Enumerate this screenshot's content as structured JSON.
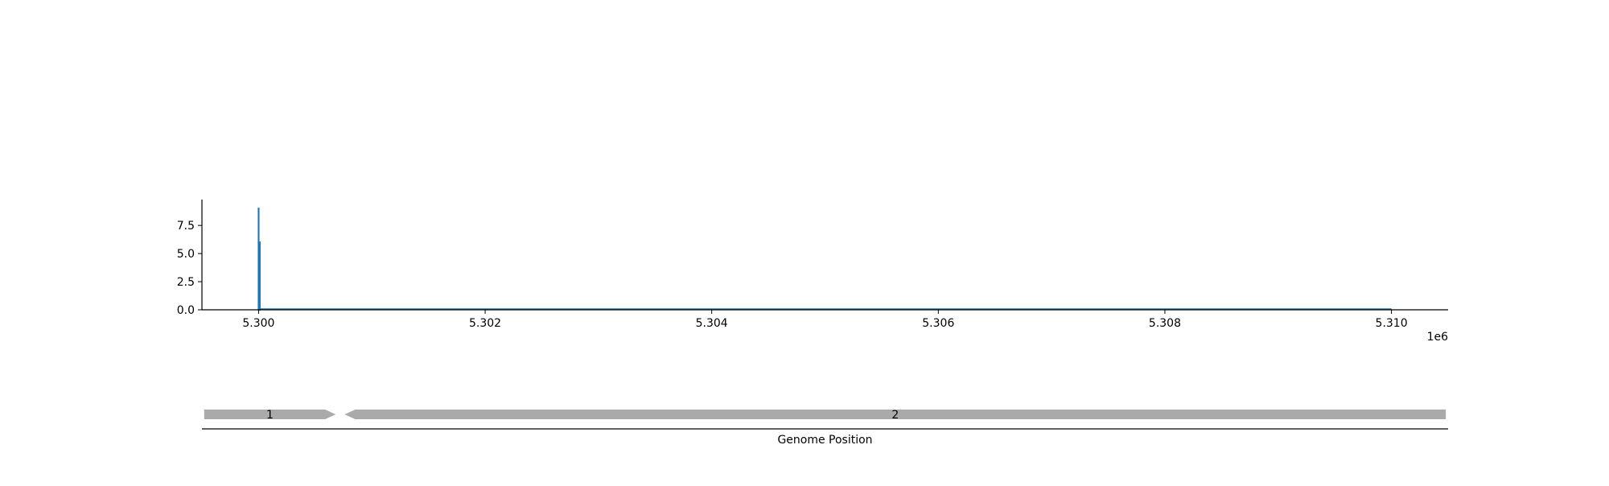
{
  "chart_data": [
    {
      "type": "line",
      "title": "",
      "xlabel": "",
      "ylabel": "",
      "x_offset_label": "1e6",
      "xlim": [
        5299500,
        5310500
      ],
      "ylim": [
        0,
        9.8
      ],
      "x_ticks": [
        5300000,
        5302000,
        5304000,
        5306000,
        5308000,
        5310000
      ],
      "x_tick_labels": [
        "5.300",
        "5.302",
        "5.304",
        "5.306",
        "5.308",
        "5.310"
      ],
      "y_ticks": [
        0,
        2.5,
        5,
        7.5
      ],
      "y_tick_labels": [
        "0.0",
        "2.5",
        "5.0",
        "7.5"
      ],
      "grid": false,
      "legend": "none",
      "series": [
        {
          "color": "#1f77b4",
          "x": [
            5300000,
            5300000,
            5300001,
            5300001,
            5300010,
            5300010,
            5300011,
            5300011,
            5310000
          ],
          "y": [
            0,
            9.0,
            9.0,
            0,
            0,
            6.0,
            6.0,
            0.05,
            0.05
          ]
        }
      ]
    },
    {
      "type": "gene-track",
      "xlabel": "Genome Position",
      "xlim": [
        5299500,
        5310500
      ],
      "features": [
        {
          "label": "1",
          "start": 5299520,
          "end": 5300680,
          "strand": "+",
          "color": "#aaaaaa"
        },
        {
          "label": "2",
          "start": 5300760,
          "end": 5310480,
          "strand": "-",
          "color": "#aaaaaa"
        }
      ]
    }
  ]
}
